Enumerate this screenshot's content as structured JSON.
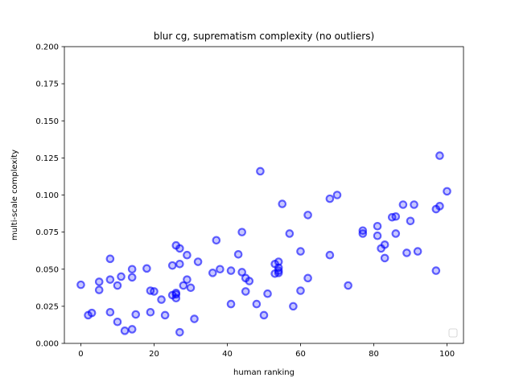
{
  "chart_data": {
    "type": "scatter",
    "title": "blur cg, suprematism complexity (no outliers)",
    "xlabel": "human ranking",
    "ylabel": "multi-scale complexity",
    "xlim": [
      -4.5,
      104.5
    ],
    "ylim": [
      0.0,
      0.2
    ],
    "xticks": [
      0,
      20,
      40,
      60,
      80,
      100
    ],
    "yticks": [
      0.0,
      0.025,
      0.05,
      0.075,
      0.1,
      0.125,
      0.15,
      0.175,
      0.2
    ],
    "xtick_labels": [
      "0",
      "20",
      "40",
      "60",
      "80",
      "100"
    ],
    "ytick_labels": [
      "0.000",
      "0.025",
      "0.050",
      "0.075",
      "0.100",
      "0.125",
      "0.150",
      "0.175",
      "0.200"
    ],
    "grid": false,
    "legend": {
      "placement": "lower-right",
      "entries": []
    },
    "marker_color": "#0000ff",
    "points": [
      [
        0,
        0.0395
      ],
      [
        2,
        0.019
      ],
      [
        3,
        0.0205
      ],
      [
        5,
        0.0415
      ],
      [
        5,
        0.036
      ],
      [
        8,
        0.057
      ],
      [
        8,
        0.043
      ],
      [
        8,
        0.021
      ],
      [
        10,
        0.039
      ],
      [
        10,
        0.0145
      ],
      [
        11,
        0.045
      ],
      [
        12,
        0.0085
      ],
      [
        14,
        0.05
      ],
      [
        14,
        0.0445
      ],
      [
        14,
        0.0095
      ],
      [
        15,
        0.0195
      ],
      [
        18,
        0.0505
      ],
      [
        19,
        0.0355
      ],
      [
        19,
        0.021
      ],
      [
        20,
        0.035
      ],
      [
        22,
        0.0295
      ],
      [
        23,
        0.019
      ],
      [
        25,
        0.0525
      ],
      [
        25,
        0.0325
      ],
      [
        26,
        0.066
      ],
      [
        26,
        0.034
      ],
      [
        26,
        0.033
      ],
      [
        26,
        0.0305
      ],
      [
        27,
        0.064
      ],
      [
        27,
        0.0535
      ],
      [
        27,
        0.0075
      ],
      [
        28,
        0.039
      ],
      [
        29,
        0.0595
      ],
      [
        29,
        0.043
      ],
      [
        30,
        0.0375
      ],
      [
        31,
        0.0165
      ],
      [
        32,
        0.055
      ],
      [
        36,
        0.0475
      ],
      [
        37,
        0.0695
      ],
      [
        38,
        0.05
      ],
      [
        41,
        0.0265
      ],
      [
        41,
        0.049
      ],
      [
        43,
        0.06
      ],
      [
        44,
        0.075
      ],
      [
        44,
        0.048
      ],
      [
        45,
        0.044
      ],
      [
        45,
        0.035
      ],
      [
        46,
        0.042
      ],
      [
        48,
        0.0265
      ],
      [
        49,
        0.116
      ],
      [
        50,
        0.019
      ],
      [
        51,
        0.0335
      ],
      [
        53,
        0.0535
      ],
      [
        53,
        0.047
      ],
      [
        54,
        0.055
      ],
      [
        54,
        0.051
      ],
      [
        54,
        0.049
      ],
      [
        54,
        0.0475
      ],
      [
        55,
        0.094
      ],
      [
        57,
        0.074
      ],
      [
        58,
        0.025
      ],
      [
        60,
        0.062
      ],
      [
        60,
        0.0355
      ],
      [
        62,
        0.0865
      ],
      [
        62,
        0.044
      ],
      [
        68,
        0.0975
      ],
      [
        68,
        0.0595
      ],
      [
        70,
        0.1
      ],
      [
        73,
        0.039
      ],
      [
        77,
        0.076
      ],
      [
        77,
        0.074
      ],
      [
        81,
        0.079
      ],
      [
        81,
        0.0725
      ],
      [
        82,
        0.064
      ],
      [
        83,
        0.0665
      ],
      [
        83,
        0.0575
      ],
      [
        85,
        0.085
      ],
      [
        86,
        0.0855
      ],
      [
        86,
        0.074
      ],
      [
        88,
        0.0935
      ],
      [
        89,
        0.061
      ],
      [
        90,
        0.0825
      ],
      [
        91,
        0.0935
      ],
      [
        92,
        0.062
      ],
      [
        97,
        0.0905
      ],
      [
        97,
        0.049
      ],
      [
        98,
        0.0925
      ],
      [
        98,
        0.1265
      ],
      [
        100,
        0.1025
      ]
    ]
  }
}
